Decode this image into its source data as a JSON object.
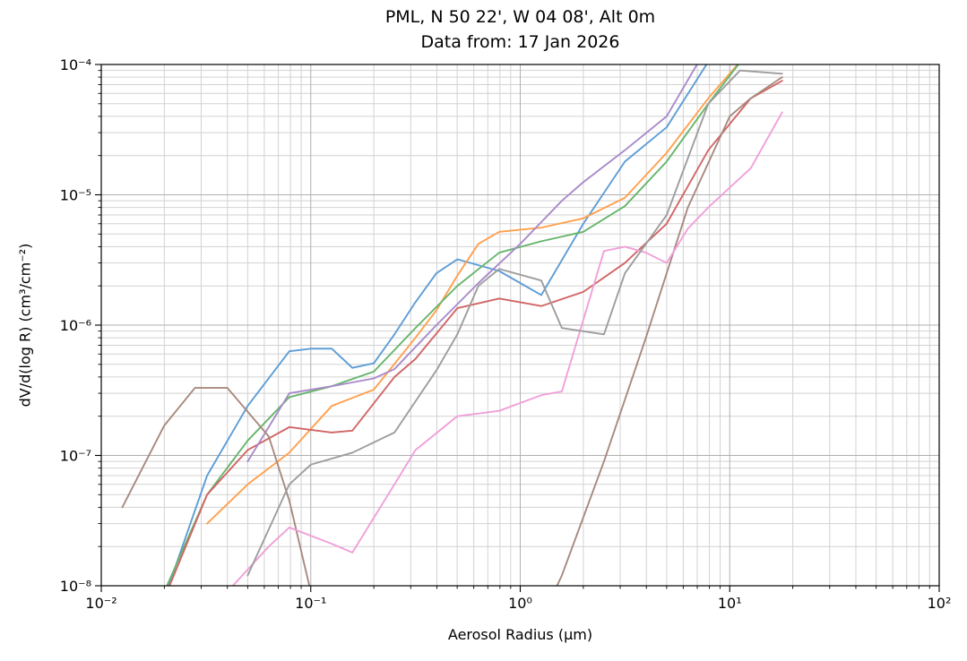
{
  "title": "PML, N 50 22', W 04 08', Alt 0m",
  "subtitle": "Data from: 17 Jan 2026",
  "chart_data": {
    "type": "line",
    "title": "PML, N 50 22', W 04 08', Alt 0m",
    "subtitle": "Data from: 17 Jan 2026",
    "xlabel": "Aerosol Radius (μm)",
    "ylabel": "dV/d(log R) (cm³/cm⁻²)",
    "xscale": "log",
    "yscale": "log",
    "xlim": [
      0.01,
      100
    ],
    "ylim": [
      1e-08,
      0.0001
    ],
    "grid": "major+minor",
    "legend": "none",
    "x_tick_values": [
      0.01,
      0.1,
      1,
      10,
      100
    ],
    "x_tick_labels": [
      "10⁻²",
      "10⁻¹",
      "10⁰",
      "10¹",
      "10²"
    ],
    "y_tick_values": [
      1e-08,
      1e-07,
      1e-06,
      1e-05,
      0.0001
    ],
    "y_tick_labels": [
      "10⁻⁸",
      "10⁻⁷",
      "10⁻⁶",
      "10⁻⁵",
      "10⁻⁴"
    ],
    "grid_color_major": "#b0b0b0",
    "grid_color_minor": "#d2d2d2",
    "series": [
      {
        "name": "series-1-blue",
        "color": "#5d9dd5",
        "x": [
          0.02,
          0.032,
          0.05,
          0.079,
          0.1,
          0.126,
          0.158,
          0.2,
          0.251,
          0.316,
          0.398,
          0.501,
          0.794,
          1.26,
          2.0,
          3.16,
          5.0,
          7.9
        ],
        "y": [
          8e-09,
          7e-08,
          2.4e-07,
          6.3e-07,
          6.6e-07,
          6.6e-07,
          4.7e-07,
          5.1e-07,
          8.5e-07,
          1.5e-06,
          2.5e-06,
          3.2e-06,
          2.6e-06,
          1.7e-06,
          6e-06,
          1.8e-05,
          3.3e-05,
          0.000105
        ]
      },
      {
        "name": "series-2-orange",
        "color": "#ffa04f",
        "x": [
          0.032,
          0.05,
          0.079,
          0.126,
          0.2,
          0.316,
          0.398,
          0.501,
          0.631,
          0.794,
          1.26,
          2.0,
          3.16,
          5.0,
          7.9,
          11.2
        ],
        "y": [
          3e-08,
          6e-08,
          1.05e-07,
          2.4e-07,
          3.2e-07,
          8e-07,
          1.3e-06,
          2.4e-06,
          4.2e-06,
          5.2e-06,
          5.6e-06,
          6.6e-06,
          9.5e-06,
          2.1e-05,
          5.5e-05,
          0.000105
        ]
      },
      {
        "name": "series-3-green",
        "color": "#66b56b",
        "x": [
          0.02,
          0.032,
          0.05,
          0.079,
          0.126,
          0.2,
          0.316,
          0.501,
          0.794,
          1.26,
          2.0,
          3.16,
          5.0,
          7.9,
          11.5
        ],
        "y": [
          9e-09,
          5e-08,
          1.3e-07,
          2.8e-07,
          3.4e-07,
          4.4e-07,
          9.5e-07,
          2e-06,
          3.6e-06,
          4.4e-06,
          5.2e-06,
          8.2e-06,
          1.8e-05,
          5e-05,
          0.00011
        ]
      },
      {
        "name": "series-4-red",
        "color": "#d26566",
        "x": [
          0.02,
          0.032,
          0.05,
          0.079,
          0.126,
          0.158,
          0.251,
          0.316,
          0.501,
          0.794,
          1.26,
          2.0,
          3.16,
          5.0,
          7.9,
          12.6,
          17.8
        ],
        "y": [
          8e-09,
          5e-08,
          1.1e-07,
          1.65e-07,
          1.5e-07,
          1.55e-07,
          4e-07,
          5.5e-07,
          1.35e-06,
          1.6e-06,
          1.4e-06,
          1.8e-06,
          3e-06,
          6e-06,
          2.2e-05,
          5.5e-05,
          7.5e-05
        ]
      },
      {
        "name": "series-5-purple",
        "color": "#a88bc9",
        "x": [
          0.05,
          0.079,
          0.126,
          0.2,
          0.251,
          0.398,
          0.631,
          1.0,
          1.58,
          2.0,
          3.16,
          5.0,
          7.1
        ],
        "y": [
          9e-08,
          3e-07,
          3.4e-07,
          3.9e-07,
          4.6e-07,
          1e-06,
          2.1e-06,
          4.2e-06,
          9e-06,
          1.25e-05,
          2.2e-05,
          4e-05,
          0.000105
        ]
      },
      {
        "name": "series-6-brown",
        "color": "#a8897e",
        "x": [
          0.0126,
          0.02,
          0.028,
          0.04,
          0.063,
          0.079,
          0.1,
          0.126,
          1.0,
          1.58,
          2.51,
          3.98,
          6.31,
          10.0,
          12.6,
          17.8
        ],
        "y": [
          4e-08,
          1.7e-07,
          3.3e-07,
          3.3e-07,
          1.4e-07,
          4.5e-08,
          9e-09,
          2.5e-09,
          2.5e-09,
          1.2e-08,
          9e-08,
          8e-07,
          8e-06,
          4e-05,
          5.5e-05,
          8e-05
        ]
      },
      {
        "name": "series-7-pink",
        "color": "#f0a0d9",
        "x": [
          0.04,
          0.063,
          0.079,
          0.126,
          0.158,
          0.251,
          0.316,
          0.501,
          0.794,
          1.26,
          1.58,
          2.51,
          3.16,
          3.98,
          5.0,
          6.31,
          7.9,
          12.6,
          17.8
        ],
        "y": [
          9e-09,
          2e-08,
          2.8e-08,
          2.1e-08,
          1.8e-08,
          6e-08,
          1.1e-07,
          2e-07,
          2.2e-07,
          2.9e-07,
          3.1e-07,
          3.7e-06,
          4e-06,
          3.6e-06,
          3e-06,
          5.5e-06,
          8e-06,
          1.6e-05,
          4.3e-05
        ]
      },
      {
        "name": "series-8-gray",
        "color": "#9d9d9d",
        "x": [
          0.05,
          0.079,
          0.1,
          0.158,
          0.251,
          0.398,
          0.501,
          0.631,
          0.794,
          1.26,
          1.58,
          2.51,
          3.16,
          5.0,
          7.9,
          11.2,
          17.8
        ],
        "y": [
          1.2e-08,
          6e-08,
          8.5e-08,
          1.05e-07,
          1.5e-07,
          4.5e-07,
          8.5e-07,
          2e-06,
          2.7e-06,
          2.2e-06,
          9.5e-07,
          8.5e-07,
          2.5e-06,
          7e-06,
          5e-05,
          9e-05,
          8.5e-05
        ]
      }
    ]
  }
}
